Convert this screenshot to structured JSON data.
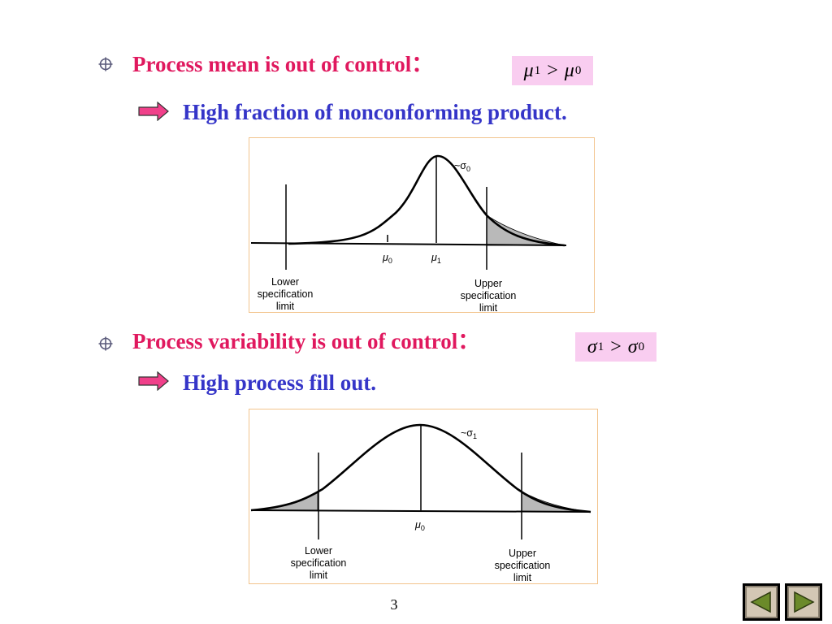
{
  "section1": {
    "heading": "Process mean is out of control：",
    "formula": {
      "left": "μ",
      "left_sub": "1",
      "op": ">",
      "right": "μ",
      "right_sub": "0"
    },
    "subtext": "High fraction of  nonconforming product.",
    "figure": {
      "sigma_label": "~σ",
      "sigma_sub": "0",
      "mu0_label": "μ",
      "mu0_sub": "0",
      "mu1_label": "μ",
      "mu1_sub": "1",
      "lower_label": [
        "Lower",
        "specification",
        "limit"
      ],
      "upper_label": [
        "Upper",
        "specification",
        "limit"
      ]
    }
  },
  "section2": {
    "heading": "Process variability is out of control：",
    "formula": {
      "left": "σ",
      "left_sub": "1",
      "op": ">",
      "right": "σ",
      "right_sub": "0"
    },
    "subtext": "High process fill out.",
    "figure": {
      "sigma_label": "~σ",
      "sigma_sub": "1",
      "mu0_label": "μ",
      "mu0_sub": "0",
      "lower_label": [
        "Lower",
        "specification",
        "limit"
      ],
      "upper_label": [
        "Upper",
        "specification",
        "limit"
      ]
    }
  },
  "footer": {
    "page_number": "3"
  },
  "nav": {
    "prev": "previous-slide",
    "next": "next-slide"
  },
  "colors": {
    "heading": "#e0185e",
    "subtext": "#3535c8",
    "formula_bg": "#f9cdf0",
    "arrow": "#f0408a"
  }
}
